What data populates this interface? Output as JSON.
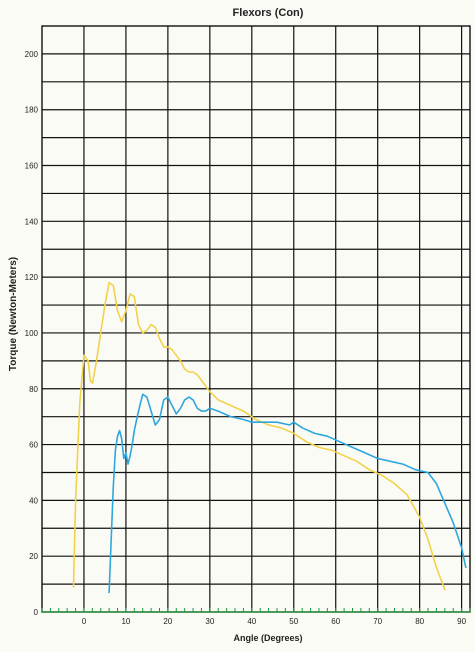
{
  "chart_data": {
    "type": "line",
    "title": "Flexors (Con)",
    "xlabel": "Angle (Degrees)",
    "ylabel": "Torque (Newton-Meters)",
    "xlim": [
      -10,
      92
    ],
    "ylim": [
      0,
      210
    ],
    "xticks": [
      0,
      10,
      20,
      30,
      40,
      50,
      60,
      70,
      80,
      90
    ],
    "yticks": [
      0,
      20,
      40,
      60,
      80,
      100,
      120,
      140,
      160,
      180,
      200
    ],
    "grid": true,
    "legend": "none",
    "series": [
      {
        "color": "#f2d24b",
        "x": [
          -2.5,
          -2,
          -1,
          0,
          1,
          1.5,
          2,
          3,
          4,
          5,
          6,
          7,
          8,
          9,
          10,
          11,
          12,
          13,
          14,
          15,
          16,
          17,
          18,
          19,
          20,
          21,
          22,
          23,
          24,
          25,
          26,
          27,
          28,
          29,
          30,
          32,
          35,
          38,
          41,
          44,
          47,
          50,
          53,
          56,
          59,
          62,
          65,
          68,
          71,
          74,
          77,
          80,
          82,
          84,
          86
        ],
        "y": [
          9,
          40,
          75,
          92,
          90,
          83,
          82,
          90,
          100,
          110,
          118,
          117,
          108,
          104,
          108,
          114,
          113,
          103,
          100,
          101,
          103,
          102,
          98,
          95,
          95,
          94,
          92,
          90,
          87,
          86,
          86,
          85,
          83,
          81,
          79,
          76,
          74,
          72,
          69,
          67,
          66,
          64,
          61,
          59,
          58,
          56,
          54,
          51,
          49,
          46,
          42,
          34,
          26,
          16,
          8
        ]
      },
      {
        "color": "#2ea7de",
        "x": [
          6,
          6.5,
          7,
          7.5,
          8,
          8.5,
          9,
          9.5,
          10,
          10.5,
          11,
          11.5,
          12,
          13,
          14,
          15,
          16,
          17,
          18,
          19,
          20,
          21,
          22,
          23,
          24,
          25,
          26,
          27,
          28,
          29,
          30,
          32,
          35,
          38,
          40,
          43,
          46,
          49,
          50,
          52,
          55,
          58,
          61,
          64,
          67,
          70,
          73,
          76,
          79,
          82,
          84,
          86,
          88,
          90,
          91
        ],
        "y": [
          7,
          26,
          45,
          58,
          63,
          65,
          62,
          55,
          57,
          53,
          56,
          60,
          65,
          72,
          78,
          77,
          72,
          67,
          69,
          76,
          77,
          74,
          71,
          73,
          76,
          77,
          76,
          73,
          72,
          72,
          73,
          72,
          70,
          69,
          68,
          68,
          68,
          67,
          68,
          66,
          64,
          63,
          61,
          59,
          57,
          55,
          54,
          53,
          51,
          50,
          46,
          39,
          32,
          23,
          16
        ]
      }
    ]
  }
}
